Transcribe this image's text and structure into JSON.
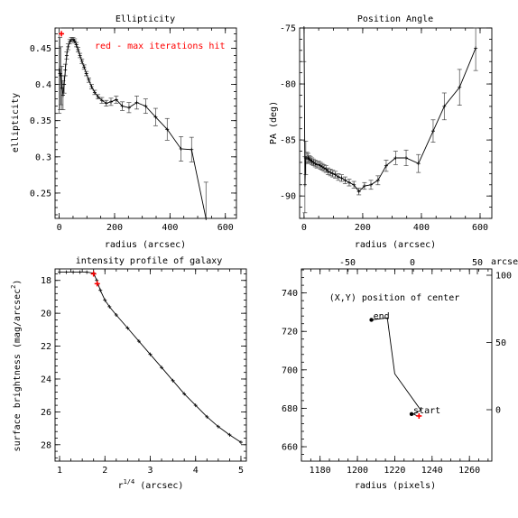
{
  "chart_data": [
    {
      "type": "line",
      "title": "Ellipticity",
      "xlabel": "radius (arcsec)",
      "ylabel": "ellipticity",
      "xlim": [
        -15,
        640
      ],
      "ylim": [
        0.215,
        0.478
      ],
      "xticks": [
        0,
        200,
        400,
        600
      ],
      "yticks": [
        0.25,
        0.3,
        0.35,
        0.4,
        0.45
      ],
      "ytick_labels": [
        "0.25",
        "0.3",
        "0.35",
        "0.4",
        "0.45"
      ],
      "annotation": {
        "text": "red - max iterations hit",
        "color": "#ff0000"
      },
      "x": [
        0,
        3,
        6,
        10,
        14,
        18,
        22,
        27,
        32,
        38,
        44,
        50,
        56,
        62,
        68,
        75,
        82,
        90,
        98,
        107,
        117,
        128,
        140,
        154,
        170,
        187,
        206,
        228,
        252,
        280,
        312,
        348,
        390,
        440,
        478,
        530
      ],
      "y": [
        0.42,
        0.415,
        0.412,
        0.395,
        0.385,
        0.4,
        0.42,
        0.44,
        0.452,
        0.459,
        0.462,
        0.462,
        0.46,
        0.455,
        0.448,
        0.44,
        0.432,
        0.424,
        0.415,
        0.406,
        0.397,
        0.389,
        0.383,
        0.378,
        0.374,
        0.376,
        0.379,
        0.37,
        0.368,
        0.375,
        0.37,
        0.355,
        0.338,
        0.311,
        0.31,
        0.215
      ],
      "err": [
        0.06,
        0.05,
        0.04,
        0.03,
        0.02,
        0.012,
        0.008,
        0.005,
        0.004,
        0.003,
        0.003,
        0.003,
        0.003,
        0.003,
        0.003,
        0.003,
        0.003,
        0.003,
        0.003,
        0.003,
        0.003,
        0.003,
        0.003,
        0.004,
        0.004,
        0.005,
        0.005,
        0.006,
        0.007,
        0.009,
        0.01,
        0.012,
        0.015,
        0.017,
        0.017,
        0.05
      ],
      "red_points": [
        {
          "x": 8,
          "y": 0.47
        }
      ],
      "colors": {
        "line": "#000000",
        "errorbar": "#444444",
        "highlight": "#ff0000"
      }
    },
    {
      "type": "line",
      "title": "Position Angle",
      "xlabel": "radius (arcsec)",
      "ylabel": "PA (deg)",
      "xlim": [
        -15,
        640
      ],
      "ylim": [
        -92,
        -75
      ],
      "xticks": [
        0,
        200,
        400,
        600
      ],
      "yticks": [
        -90,
        -85,
        -80,
        -75
      ],
      "x": [
        0,
        3,
        6,
        10,
        14,
        18,
        22,
        27,
        32,
        38,
        44,
        50,
        56,
        62,
        68,
        75,
        82,
        90,
        98,
        107,
        117,
        128,
        140,
        154,
        170,
        187,
        206,
        228,
        252,
        280,
        312,
        348,
        390,
        440,
        478,
        530,
        585
      ],
      "y": [
        -75,
        -89,
        -86.6,
        -86.6,
        -86.6,
        -86.7,
        -86.8,
        -86.9,
        -87,
        -87.1,
        -87.2,
        -87.2,
        -87.3,
        -87.4,
        -87.5,
        -87.6,
        -87.8,
        -87.9,
        -88,
        -88.1,
        -88.3,
        -88.4,
        -88.6,
        -88.8,
        -89,
        -89.6,
        -89.1,
        -89,
        -88.6,
        -87.3,
        -86.6,
        -86.6,
        -87.1,
        -84.2,
        -82,
        -80.3,
        -76.8
      ],
      "err": [
        3,
        2.5,
        1.5,
        0.5,
        0.4,
        0.3,
        0.3,
        0.3,
        0.3,
        0.3,
        0.3,
        0.3,
        0.3,
        0.3,
        0.3,
        0.3,
        0.3,
        0.3,
        0.3,
        0.3,
        0.3,
        0.3,
        0.3,
        0.3,
        0.3,
        0.3,
        0.3,
        0.4,
        0.4,
        0.5,
        0.6,
        0.7,
        0.8,
        1,
        1.2,
        1.6,
        2
      ],
      "colors": {
        "line": "#000000",
        "errorbar": "#444444"
      }
    },
    {
      "type": "line",
      "title": "intensity profile of galaxy",
      "xlabel": "r",
      "xlabel_sup": "1/4",
      "xlabel_tail": " (arcsec)",
      "ylabel": "surface brightness (mag/arcsec",
      "ylabel_sup": "2",
      "ylabel_tail": ")",
      "xlim": [
        0.9,
        5.12
      ],
      "ylim": [
        29.0,
        17.3
      ],
      "xticks": [
        1,
        2,
        3,
        4,
        5
      ],
      "yticks": [
        18,
        20,
        22,
        24,
        26,
        28
      ],
      "x": [
        1.0,
        1.15,
        1.3,
        1.45,
        1.6,
        1.75,
        1.82,
        1.9,
        2.0,
        2.1,
        2.25,
        2.5,
        2.75,
        3.0,
        3.25,
        3.5,
        3.75,
        4.0,
        4.25,
        4.5,
        4.75,
        5.0
      ],
      "y": [
        17.5,
        17.5,
        17.5,
        17.5,
        17.5,
        17.55,
        18.0,
        18.6,
        19.2,
        19.6,
        20.1,
        20.9,
        21.7,
        22.5,
        23.3,
        24.1,
        24.9,
        25.6,
        26.3,
        26.9,
        27.4,
        27.85
      ],
      "red_points": [
        {
          "x": 1.75,
          "y": 17.6
        },
        {
          "x": 1.83,
          "y": 18.2
        }
      ],
      "colors": {
        "line": "#000000",
        "highlight": "#ff0000"
      }
    },
    {
      "type": "line",
      "title": "(X,Y) position of center",
      "xlabel": "radius (pixels)",
      "xlim": [
        1170,
        1272
      ],
      "ylim": [
        652.5,
        752.5
      ],
      "xticks": [
        1180,
        1200,
        1220,
        1240,
        1260
      ],
      "yticks": [
        660,
        680,
        700,
        720,
        740
      ],
      "top_xticks": [
        -50,
        0,
        50
      ],
      "top_unit_label": "arcsec",
      "right_yticks": [
        0,
        50,
        100
      ],
      "x": [
        1207.5,
        1216,
        1220,
        1234,
        1230,
        1232
      ],
      "y": [
        726,
        727,
        698,
        679,
        677,
        676
      ],
      "markers": [
        {
          "label": "end",
          "x": 1207.5,
          "y": 726
        },
        {
          "label": "start",
          "x": 1229,
          "y": 677
        }
      ],
      "red_points": [
        {
          "x": 1233,
          "y": 676
        }
      ],
      "colors": {
        "line": "#000000",
        "highlight": "#ff0000"
      }
    }
  ]
}
